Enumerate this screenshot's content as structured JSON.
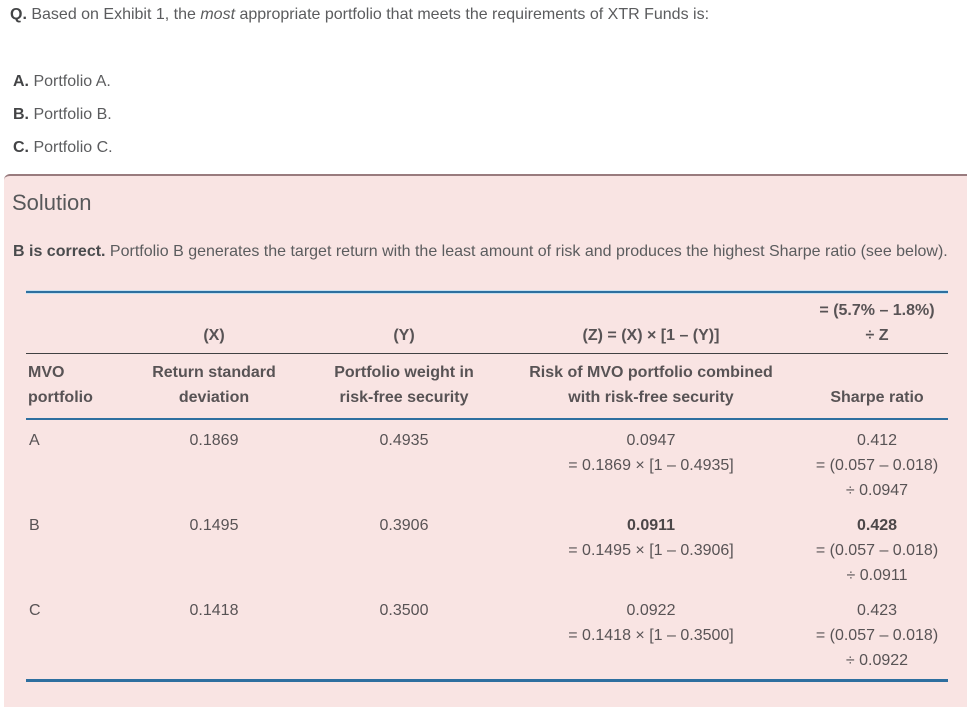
{
  "question": {
    "prefix": "Q.",
    "lead_in": "Based on Exhibit 1, the ",
    "italic_word": "most",
    "lead_out": " appropriate portfolio that meets the requirements of XTR Funds is:",
    "options": [
      {
        "letter": "A.",
        "text": "Portfolio A."
      },
      {
        "letter": "B.",
        "text": "Portfolio B."
      },
      {
        "letter": "C.",
        "text": "Portfolio C."
      }
    ]
  },
  "solution": {
    "heading": "Solution",
    "verdict": "B is correct.",
    "explanation": " Portfolio B generates the target return with the least amount of risk and produces the highest Sharpe ratio (see below).",
    "table": {
      "formula_row": {
        "std_dev": [
          "(X)"
        ],
        "rf_weight": [
          "(Y)"
        ],
        "risk": [
          "(Z) = (X) × [1 – (Y)]"
        ],
        "sharpe": [
          "= (5.7% – 1.8%)",
          "÷ Z"
        ]
      },
      "header_row": {
        "portfolio": [
          "MVO",
          "portfolio"
        ],
        "std_dev": [
          "Return standard",
          "deviation"
        ],
        "rf_weight": [
          "Portfolio weight in",
          "risk-free security"
        ],
        "risk": [
          "Risk of MVO portfolio combined",
          "with risk-free security"
        ],
        "sharpe": [
          "Sharpe ratio"
        ]
      },
      "rows": [
        {
          "portfolio": "A",
          "std_dev": "0.1869",
          "rf_weight": "0.4935",
          "risk_value": "0.0947",
          "risk_formula_lines": [
            "= 0.1869 × [1 – 0.4935]"
          ],
          "sharpe_value": "0.412",
          "sharpe_formula_lines": [
            "= (0.057 – 0.018)",
            "÷ 0.0947"
          ],
          "emphasis": false
        },
        {
          "portfolio": "B",
          "std_dev": "0.1495",
          "rf_weight": "0.3906",
          "risk_value": "0.0911",
          "risk_formula_lines": [
            "= 0.1495 × [1 – 0.3906]"
          ],
          "sharpe_value": "0.428",
          "sharpe_formula_lines": [
            "= (0.057 – 0.018)",
            "÷ 0.0911"
          ],
          "emphasis": true
        },
        {
          "portfolio": "C",
          "std_dev": "0.1418",
          "rf_weight": "0.3500",
          "risk_value": "0.0922",
          "risk_formula_lines": [
            "= 0.1418 × [1 – 0.3500]"
          ],
          "sharpe_value": "0.423",
          "sharpe_formula_lines": [
            "= (0.057 – 0.018)",
            "÷ 0.0922"
          ],
          "emphasis": false
        }
      ]
    }
  },
  "colors": {
    "panel_background": "#f9e4e3",
    "panel_top_border": "#997b7e",
    "table_rule_blue": "#2e6f9f",
    "table_rule_light_blue": "#c9e0ef",
    "table_rule_dark": "#414143",
    "body_text": "#5b5c5e",
    "table_text": "#585355"
  }
}
